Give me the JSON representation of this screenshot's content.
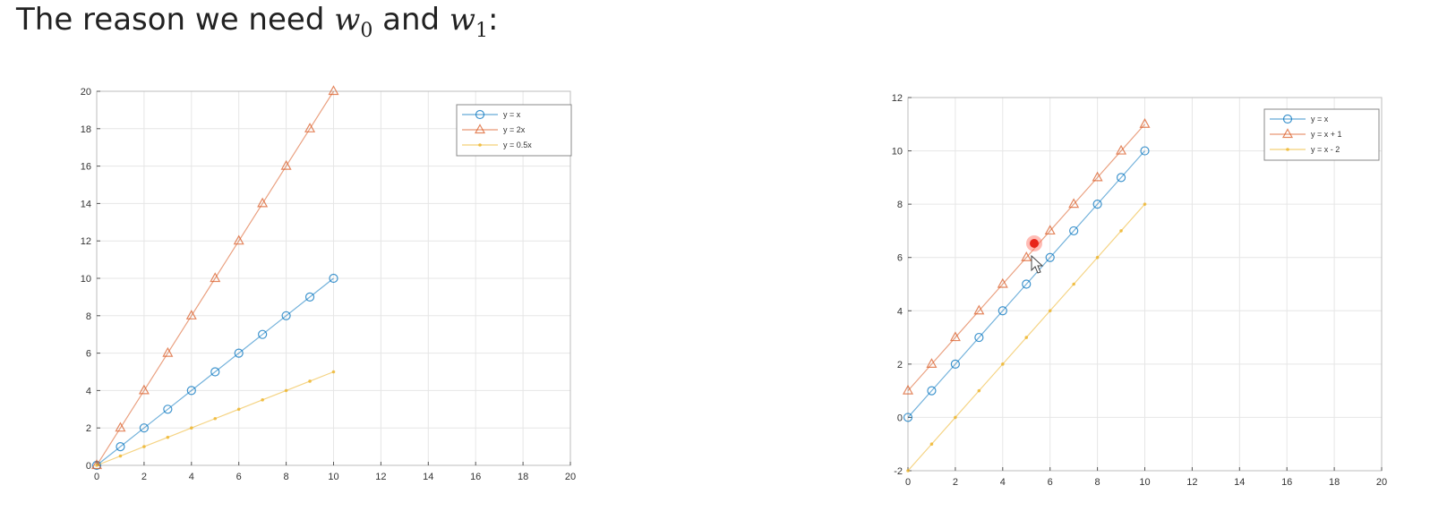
{
  "heading": {
    "text": "The reason we need",
    "w0": "w",
    "w0_sub": "0",
    "and": "and",
    "w1": "w",
    "w1_sub": "1",
    "colon": ":"
  },
  "chart_data": [
    {
      "type": "line",
      "xlim": [
        0,
        20
      ],
      "ylim": [
        0,
        20
      ],
      "xticks": [
        0,
        2,
        4,
        6,
        8,
        10,
        12,
        14,
        16,
        18,
        20
      ],
      "yticks": [
        0,
        2,
        4,
        6,
        8,
        10,
        12,
        14,
        16,
        18,
        20
      ],
      "grid": true,
      "legend_position": "top-right",
      "series": [
        {
          "name": "y = x",
          "color": "#0072BD",
          "marker": "circle",
          "x": [
            0,
            1,
            2,
            3,
            4,
            5,
            6,
            7,
            8,
            9,
            10
          ],
          "y": [
            0,
            1,
            2,
            3,
            4,
            5,
            6,
            7,
            8,
            9,
            10
          ]
        },
        {
          "name": "y = 2x",
          "color": "#D95319",
          "marker": "triangle",
          "x": [
            0,
            1,
            2,
            3,
            4,
            5,
            6,
            7,
            8,
            9,
            10
          ],
          "y": [
            0,
            2,
            4,
            6,
            8,
            10,
            12,
            14,
            16,
            18,
            20
          ]
        },
        {
          "name": "y = 0.5x",
          "color": "#EDB120",
          "marker": "point",
          "x": [
            0,
            1,
            2,
            3,
            4,
            5,
            6,
            7,
            8,
            9,
            10
          ],
          "y": [
            0,
            0.5,
            1,
            1.5,
            2,
            2.5,
            3,
            3.5,
            4,
            4.5,
            5
          ]
        }
      ]
    },
    {
      "type": "line",
      "xlim": [
        0,
        20
      ],
      "ylim": [
        -2,
        12
      ],
      "xticks": [
        0,
        2,
        4,
        6,
        8,
        10,
        12,
        14,
        16,
        18,
        20
      ],
      "yticks": [
        -2,
        0,
        2,
        4,
        6,
        8,
        10,
        12
      ],
      "grid": true,
      "legend_position": "top-right",
      "series": [
        {
          "name": "y = x",
          "color": "#0072BD",
          "marker": "circle",
          "x": [
            0,
            1,
            2,
            3,
            4,
            5,
            6,
            7,
            8,
            9,
            10
          ],
          "y": [
            0,
            1,
            2,
            3,
            4,
            5,
            6,
            7,
            8,
            9,
            10
          ]
        },
        {
          "name": "y = x + 1",
          "color": "#D95319",
          "marker": "triangle",
          "x": [
            0,
            1,
            2,
            3,
            4,
            5,
            6,
            7,
            8,
            9,
            10
          ],
          "y": [
            1,
            2,
            3,
            4,
            5,
            6,
            7,
            8,
            9,
            10,
            11
          ]
        },
        {
          "name": "y = x - 2",
          "color": "#EDB120",
          "marker": "point",
          "x": [
            0,
            1,
            2,
            3,
            4,
            5,
            6,
            7,
            8,
            9,
            10
          ],
          "y": [
            -2,
            -1,
            0,
            1,
            2,
            3,
            4,
            5,
            6,
            7,
            8
          ]
        }
      ]
    }
  ]
}
